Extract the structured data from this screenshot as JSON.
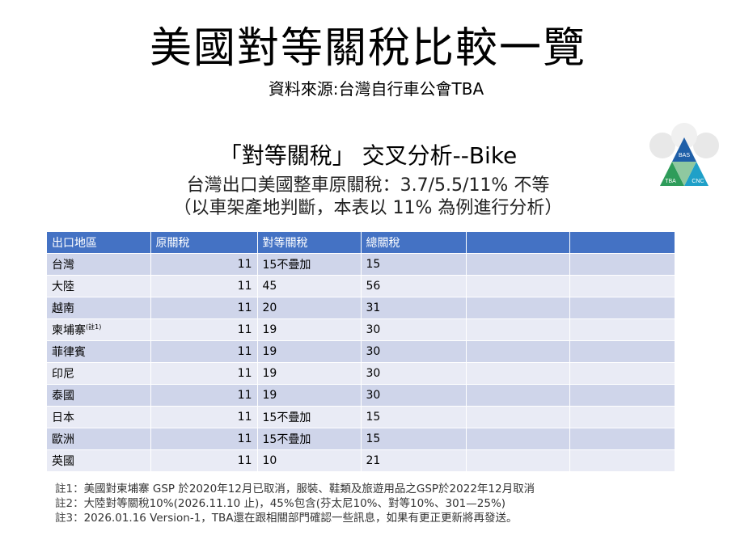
{
  "title": "美國對等關稅比較一覽",
  "source": "資料來源:台灣自行車公會TBA",
  "subtitle": {
    "line1": "「對等關稅」 交叉分析--Bike",
    "line2": "台灣出口美國整車原關稅：3.7/5.5/11% 不等",
    "line3": "（以車架產地判斷，本表以 11% 為例進行分析）"
  },
  "logo": {
    "labels": [
      "BAS",
      "TBA",
      "CNC"
    ],
    "colors": [
      "#1f5fa8",
      "#2e9c5a",
      "#1fa0c8"
    ]
  },
  "table": {
    "headers": [
      "出口地區",
      "原關稅",
      "對等關稅",
      "總關稅",
      "",
      ""
    ],
    "rows": [
      {
        "region": "台灣",
        "note": "",
        "original": "11",
        "reciprocal": "15不疊加",
        "total": "15"
      },
      {
        "region": "大陸",
        "note": "",
        "original": "11",
        "reciprocal": "45",
        "total": "56"
      },
      {
        "region": "越南",
        "note": "",
        "original": "11",
        "reciprocal": "20",
        "total": "31"
      },
      {
        "region": "柬埔寨",
        "note": "(註1)",
        "original": "11",
        "reciprocal": "19",
        "total": "30"
      },
      {
        "region": "菲律賓",
        "note": "",
        "original": "11",
        "reciprocal": "19",
        "total": "30"
      },
      {
        "region": "印尼",
        "note": "",
        "original": "11",
        "reciprocal": "19",
        "total": "30"
      },
      {
        "region": "泰國",
        "note": "",
        "original": "11",
        "reciprocal": "19",
        "total": "30"
      },
      {
        "region": "日本",
        "note": "",
        "original": "11",
        "reciprocal": "15不疊加",
        "total": "15"
      },
      {
        "region": "歐洲",
        "note": "",
        "original": "11",
        "reciprocal": "15不疊加",
        "total": "15"
      },
      {
        "region": "英國",
        "note": "",
        "original": "11",
        "reciprocal": "10",
        "total": "21"
      }
    ]
  },
  "notes": [
    {
      "label": "註1：",
      "text": "美國對柬埔寨 GSP 於2020年12月已取消，服裝、鞋類及旅遊用品之GSP於2022年12月取消"
    },
    {
      "label": "註2：",
      "text": "大陸對等關稅10%(2026.11.10 止)，45%包含(芬太尼10%、對等10%、301—25%)"
    },
    {
      "label": "註3：",
      "text": "2026.01.16 Version-1，TBA還在跟相關部門確認一些訊息，如果有更正更新將再發送。"
    }
  ]
}
